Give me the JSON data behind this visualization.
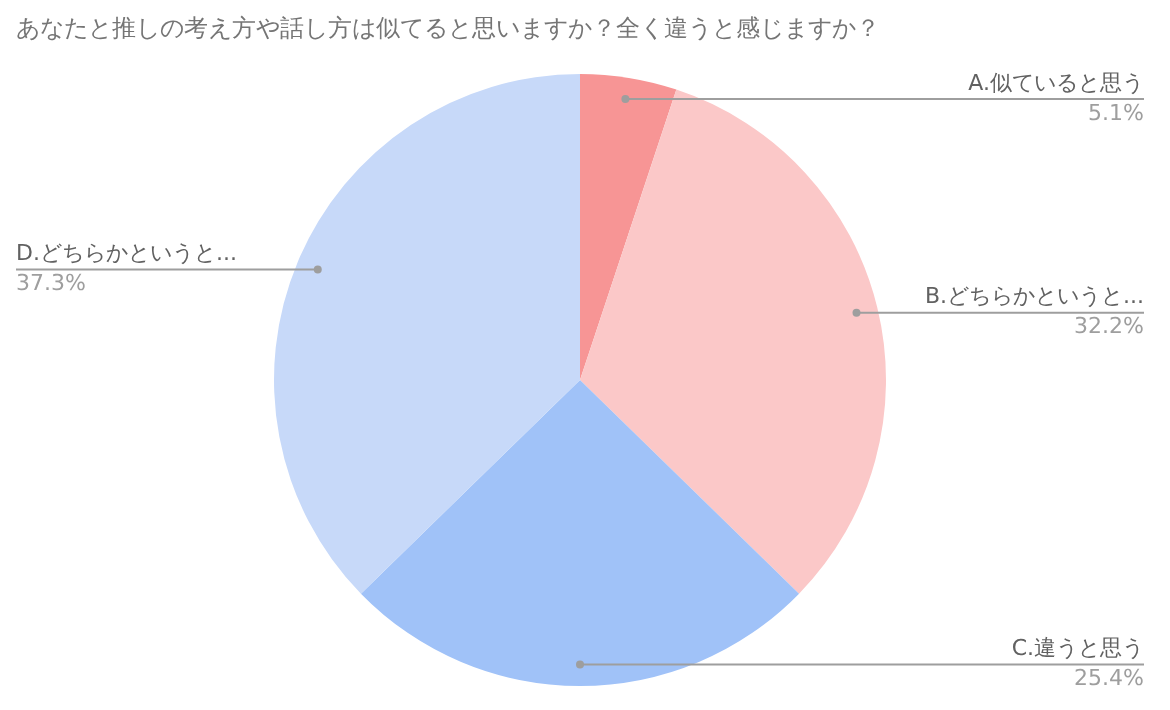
{
  "chart_data": {
    "type": "pie",
    "title": "あなたと推しの考え方や話し方は似てると思いますか？全く違うと感じますか？",
    "categories": [
      "A.似ていると思う",
      "B.どちらかというと...",
      "C.違うと思う",
      "D.どちらかというと..."
    ],
    "values": [
      5.1,
      32.2,
      25.4,
      37.3
    ],
    "colors": [
      "#f79595",
      "#fbc8c8",
      "#a0c2f8",
      "#c7d9f9"
    ],
    "value_labels": [
      "5.1%",
      "32.2%",
      "25.4%",
      "37.3%"
    ],
    "legend": false
  }
}
